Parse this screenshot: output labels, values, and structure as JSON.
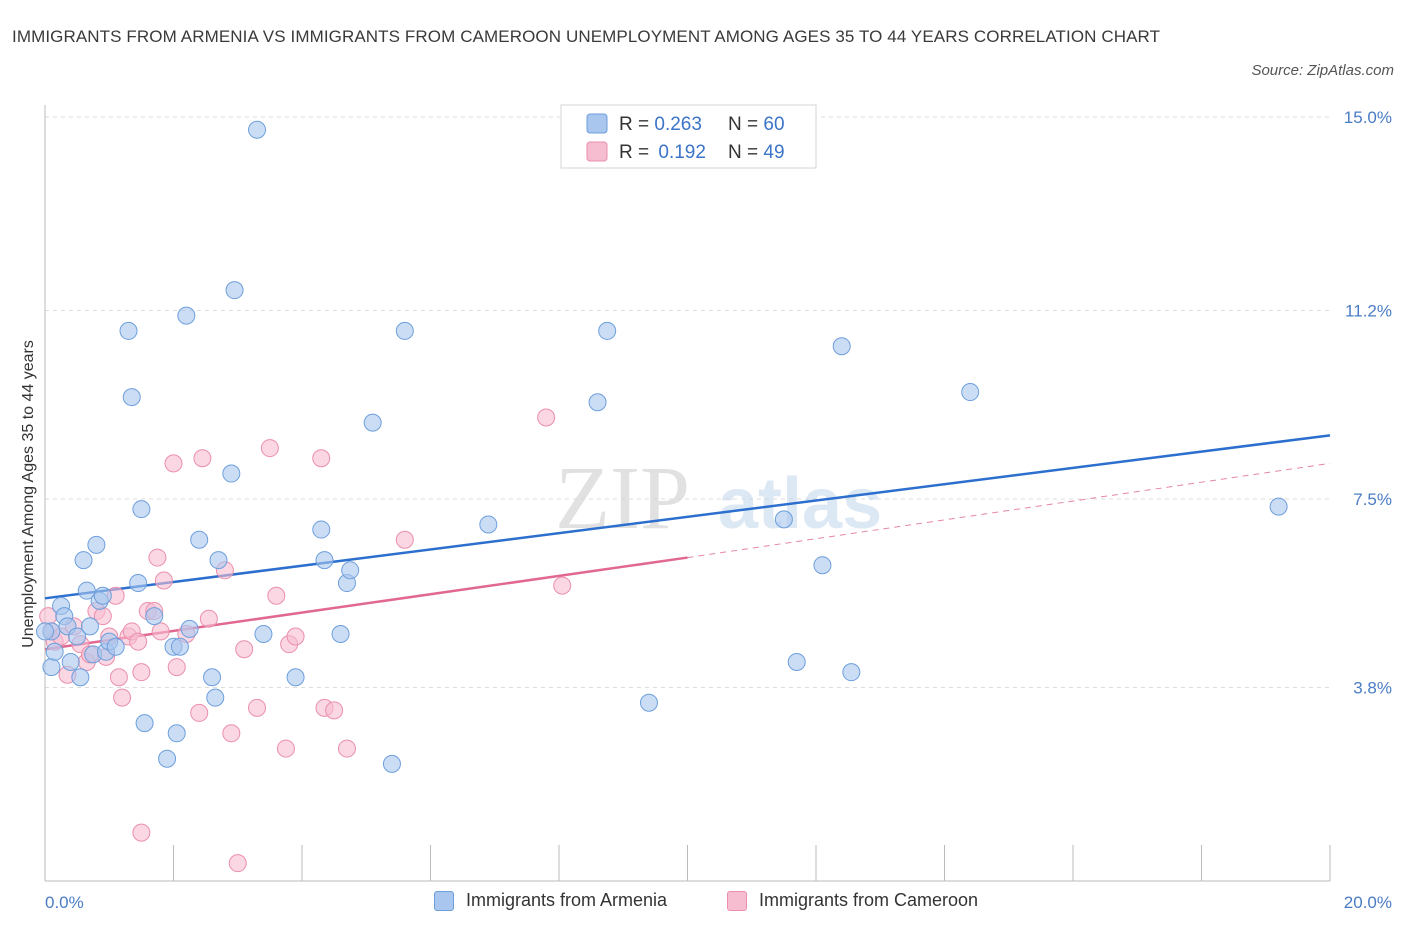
{
  "title": "IMMIGRANTS FROM ARMENIA VS IMMIGRANTS FROM CAMEROON UNEMPLOYMENT AMONG AGES 35 TO 44 YEARS CORRELATION CHART",
  "source": "Source: ZipAtlas.com",
  "watermark": {
    "zip": "ZIP",
    "atlas": "atlas"
  },
  "colors": {
    "armenia_fill": "#a9c6ee",
    "armenia_stroke": "#6d9fdc",
    "armenia_line": "#2c6fce",
    "cameroon_fill": "#f6bdd0",
    "cameroon_stroke": "#eb8fac",
    "cameroon_line": "#e16892",
    "tick_text": "#4a7cc4"
  },
  "legend_top": {
    "rows": [
      {
        "r_label": "R = ",
        "r_value": "0.263",
        "n_label": "N = ",
        "n_value": "60"
      },
      {
        "r_label": "R = ",
        "r_value": "0.192",
        "n_label": "N = ",
        "n_value": "49"
      }
    ]
  },
  "legend_bottom": {
    "armenia": "Immigrants from Armenia",
    "cameroon": "Immigrants from Cameroon"
  },
  "chart_data": {
    "type": "scatter",
    "xlabel": "",
    "ylabel": "Unemployment Among Ages 35 to 44 years",
    "xlim": [
      0,
      20
    ],
    "ylim": [
      0,
      15
    ],
    "x_tick_labels": [
      "0.0%",
      "20.0%"
    ],
    "y_ticks": [
      3.8,
      7.5,
      11.2,
      15.0
    ],
    "y_tick_labels": [
      "3.8%",
      "7.5%",
      "11.2%",
      "15.0%"
    ],
    "grid": "horizontal dashed",
    "legend_placement": "top-center",
    "series": [
      {
        "name": "Immigrants from Armenia",
        "R": 0.263,
        "N": 60,
        "trend": {
          "x": [
            0,
            20
          ],
          "y": [
            5.55,
            8.75
          ]
        },
        "points": [
          [
            0.1,
            4.9
          ],
          [
            0.1,
            4.2
          ],
          [
            0.15,
            4.5
          ],
          [
            0.25,
            5.4
          ],
          [
            0.3,
            5.2
          ],
          [
            0.35,
            5.0
          ],
          [
            0.4,
            4.3
          ],
          [
            0.5,
            4.8
          ],
          [
            0.55,
            4.0
          ],
          [
            0.6,
            6.3
          ],
          [
            0.65,
            5.7
          ],
          [
            0.7,
            5.0
          ],
          [
            0.75,
            4.45
          ],
          [
            0.8,
            6.6
          ],
          [
            0.85,
            5.5
          ],
          [
            0.9,
            5.6
          ],
          [
            0.95,
            4.5
          ],
          [
            1.0,
            4.7
          ],
          [
            1.1,
            4.6
          ],
          [
            1.3,
            10.8
          ],
          [
            1.35,
            9.5
          ],
          [
            1.5,
            7.3
          ],
          [
            1.45,
            5.85
          ],
          [
            1.55,
            3.1
          ],
          [
            1.7,
            5.2
          ],
          [
            1.9,
            2.4
          ],
          [
            2.0,
            4.6
          ],
          [
            2.1,
            4.6
          ],
          [
            2.05,
            2.9
          ],
          [
            2.2,
            11.1
          ],
          [
            2.25,
            4.95
          ],
          [
            2.4,
            6.7
          ],
          [
            2.6,
            4.0
          ],
          [
            2.7,
            6.3
          ],
          [
            2.65,
            3.6
          ],
          [
            2.9,
            8.0
          ],
          [
            2.95,
            11.6
          ],
          [
            3.3,
            14.75
          ],
          [
            3.4,
            4.85
          ],
          [
            3.9,
            4.0
          ],
          [
            4.3,
            6.9
          ],
          [
            4.35,
            6.3
          ],
          [
            4.6,
            4.85
          ],
          [
            4.7,
            5.85
          ],
          [
            4.75,
            6.1
          ],
          [
            5.1,
            9.0
          ],
          [
            5.4,
            2.3
          ],
          [
            5.6,
            10.8
          ],
          [
            6.9,
            7.0
          ],
          [
            8.6,
            9.4
          ],
          [
            8.75,
            10.8
          ],
          [
            9.4,
            3.5
          ],
          [
            11.5,
            7.1
          ],
          [
            11.7,
            4.3
          ],
          [
            12.1,
            6.2
          ],
          [
            12.4,
            10.5
          ],
          [
            12.55,
            4.1
          ],
          [
            14.4,
            9.6
          ],
          [
            19.2,
            7.35
          ],
          [
            0.0,
            4.9
          ]
        ]
      },
      {
        "name": "Immigrants from Cameroon",
        "R": 0.192,
        "N": 49,
        "trend": {
          "x": [
            0,
            10
          ],
          "y": [
            4.55,
            6.35
          ]
        },
        "trend_dashed": {
          "x": [
            10,
            20
          ],
          "y": [
            6.35,
            8.2
          ]
        },
        "points": [
          [
            0.05,
            5.2
          ],
          [
            0.1,
            4.9
          ],
          [
            0.15,
            4.7
          ],
          [
            0.25,
            4.8
          ],
          [
            0.35,
            4.05
          ],
          [
            0.45,
            5.0
          ],
          [
            0.55,
            4.65
          ],
          [
            0.65,
            4.3
          ],
          [
            0.7,
            4.45
          ],
          [
            0.8,
            5.3
          ],
          [
            0.9,
            5.2
          ],
          [
            0.95,
            4.4
          ],
          [
            1.0,
            4.8
          ],
          [
            1.1,
            5.6
          ],
          [
            1.15,
            4.0
          ],
          [
            1.2,
            3.6
          ],
          [
            1.3,
            4.8
          ],
          [
            1.35,
            4.9
          ],
          [
            1.45,
            4.7
          ],
          [
            1.5,
            4.1
          ],
          [
            1.6,
            5.3
          ],
          [
            1.7,
            5.3
          ],
          [
            1.75,
            6.35
          ],
          [
            1.8,
            4.9
          ],
          [
            1.85,
            5.9
          ],
          [
            2.0,
            8.2
          ],
          [
            2.05,
            4.2
          ],
          [
            2.2,
            4.85
          ],
          [
            2.4,
            3.3
          ],
          [
            2.45,
            8.3
          ],
          [
            2.55,
            5.15
          ],
          [
            2.8,
            6.1
          ],
          [
            2.9,
            2.9
          ],
          [
            3.1,
            4.55
          ],
          [
            3.3,
            3.4
          ],
          [
            3.5,
            8.5
          ],
          [
            3.6,
            5.6
          ],
          [
            3.75,
            2.6
          ],
          [
            3.8,
            4.65
          ],
          [
            3.9,
            4.8
          ],
          [
            4.3,
            8.3
          ],
          [
            4.35,
            3.4
          ],
          [
            4.5,
            3.35
          ],
          [
            4.7,
            2.6
          ],
          [
            5.6,
            6.7
          ],
          [
            7.8,
            9.1
          ],
          [
            8.05,
            5.8
          ],
          [
            1.5,
            0.95
          ],
          [
            3.0,
            0.35
          ]
        ]
      }
    ]
  }
}
